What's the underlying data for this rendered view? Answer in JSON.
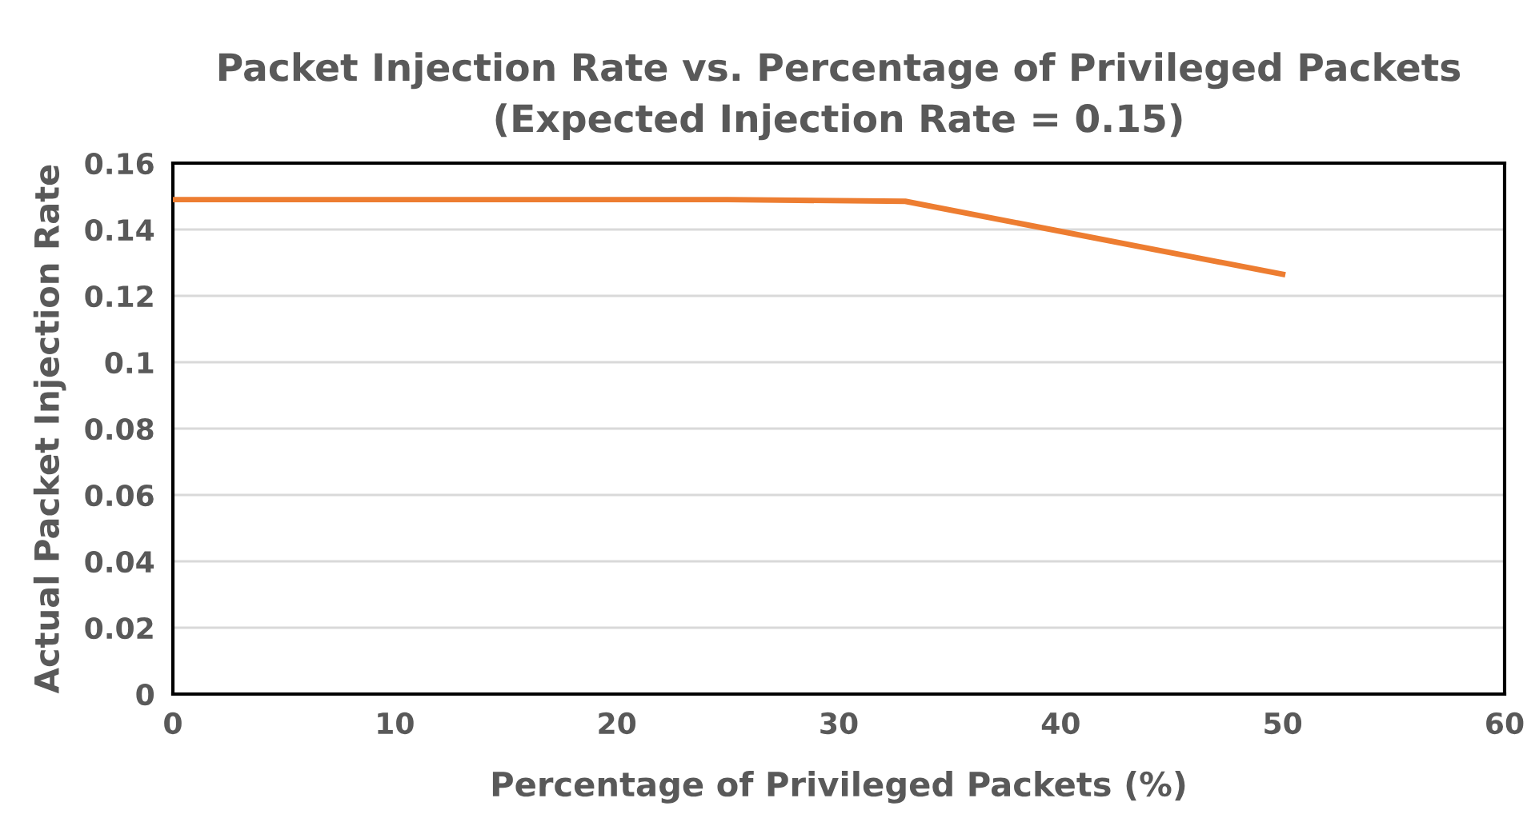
{
  "chart_data": {
    "type": "line",
    "title": "Packet Injection Rate vs. Percentage of Privileged Packets\n(Expected Injection Rate = 0.15)",
    "xlabel": "Percentage of Privileged Packets (%)",
    "ylabel": "Actual Packet Injection Rate",
    "x": [
      0,
      25,
      33,
      50
    ],
    "series": [
      {
        "color": "#ed7d31",
        "values": [
          0.149,
          0.149,
          0.1485,
          0.1265
        ]
      }
    ],
    "xlim": [
      0,
      60
    ],
    "xticks": [
      0,
      10,
      20,
      30,
      40,
      50,
      60
    ],
    "ylim": [
      0,
      0.16
    ],
    "yticks": [
      0,
      0.02,
      0.04,
      0.06,
      0.08,
      0.1,
      0.12,
      0.14,
      0.16
    ],
    "grid": "y",
    "legend": false,
    "marker": "none",
    "line_style": "solid"
  }
}
